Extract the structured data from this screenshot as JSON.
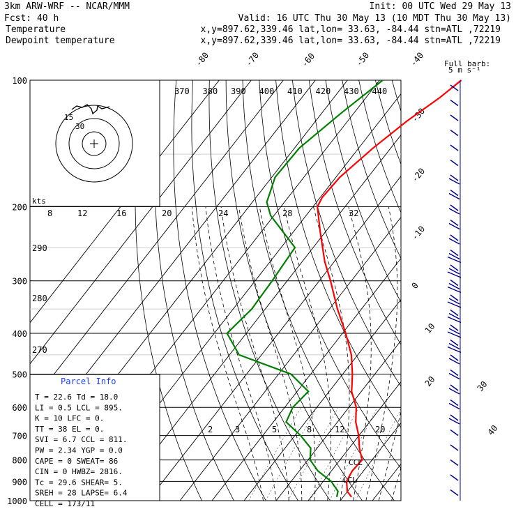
{
  "header": {
    "model": "3km ARW-WRF -- NCAR/MMM",
    "init": "Init: 00 UTC Wed 29 May 13",
    "fcst": "Fcst:   40 h",
    "valid": "Valid: 16 UTC Thu 30 May 13 (10 MDT Thu 30 May 13)",
    "temp_line_label": "Temperature",
    "temp_line_info": "x,y=897.62,339.46   lat,lon= 33.63, -84.44   stn=ATL ,72219",
    "dew_line_label": "Dewpoint temperature",
    "dew_line_info": "x,y=897.62,339.46   lat,lon= 33.63, -84.44   stn=ATL ,72219"
  },
  "colors": {
    "temperature": "#ff0000",
    "dewpoint": "#008000",
    "wind": "#00008b",
    "text_red": "#ff0000",
    "text_green": "#008000",
    "panel_title": "#1e40ff"
  },
  "barb_legend": {
    "title": "Full barb:",
    "unit": "5 m s⁻¹"
  },
  "hodograph": {
    "unit_label": "kts",
    "labels": [
      "15",
      "30"
    ]
  },
  "parcel_info": {
    "title": "Parcel Info",
    "rows": [
      "T  =   22.6  Td =  18.0",
      "LI =    0.5  LCL =  895.",
      "K  =     10  LFC =    0.",
      "TT =     38  EL  =    0.",
      "SVI =   6.7  CCL =  811.",
      "PW =   2.34  YGP =   0.0",
      "CAPE =    0  SWEAT=   86",
      "CIN =     0  HWBZ= 2816.",
      "Tc =   29.6  SHEAR=   5.",
      "SREH =   28  LAPSE=  6.4",
      "CELL = 173/11"
    ]
  },
  "annotations": {
    "lcl": "LCL",
    "ccl": "CCL"
  },
  "chart_data": {
    "type": "line",
    "y_axis": {
      "label": "",
      "scale": "log-pressure",
      "unit": "hPa",
      "ticks": [
        100,
        200,
        300,
        400,
        500,
        600,
        700,
        800,
        900,
        1000
      ],
      "ylim": [
        1000,
        100
      ]
    },
    "isotherm_labels_top": [
      "-80",
      "-70",
      "-60",
      "-50",
      "-40"
    ],
    "isotherm_labels_right": [
      "-30",
      "-20",
      "-10",
      "0",
      "10",
      "20",
      "30",
      "40"
    ],
    "theta_labels": [
      "370",
      "380",
      "390",
      "400",
      "410",
      "420",
      "430",
      "440"
    ],
    "mixing_ratio_labels_upper": [
      "8",
      "12",
      "16",
      "20",
      "24",
      "28",
      "32"
    ],
    "mixing_ratio_labels_lower": [
      "2",
      "3",
      "5",
      "8",
      "12",
      "20"
    ],
    "dry_adiabat_labels": [
      "290",
      "280",
      "270"
    ],
    "series": [
      {
        "name": "Temperature",
        "points": [
          [
            100,
            -44.5
          ],
          [
            110,
            -47.0
          ],
          [
            125,
            -51.5
          ],
          [
            145,
            -55.5
          ],
          [
            170,
            -58.8
          ],
          [
            190,
            -59.4
          ],
          [
            200,
            -58.6
          ],
          [
            230,
            -51.5
          ],
          [
            270,
            -43.0
          ],
          [
            300,
            -36.5
          ],
          [
            350,
            -27.5
          ],
          [
            400,
            -19.0
          ],
          [
            450,
            -12.0
          ],
          [
            500,
            -7.0
          ],
          [
            550,
            -3.0
          ],
          [
            600,
            2.3
          ],
          [
            650,
            5.7
          ],
          [
            700,
            9.9
          ],
          [
            750,
            13.2
          ],
          [
            800,
            16.9
          ],
          [
            850,
            16.5
          ],
          [
            900,
            17.3
          ],
          [
            950,
            19.9
          ],
          [
            980,
            22.6
          ]
        ]
      },
      {
        "name": "Dewpoint temperature",
        "points": [
          [
            100,
            -69.0
          ],
          [
            120,
            -74.0
          ],
          [
            145,
            -78.5
          ],
          [
            170,
            -79.0
          ],
          [
            195,
            -75.5
          ],
          [
            210,
            -71.0
          ],
          [
            250,
            -55.7
          ],
          [
            300,
            -54.7
          ],
          [
            350,
            -54.2
          ],
          [
            400,
            -56.0
          ],
          [
            450,
            -47.0
          ],
          [
            500,
            -26.2
          ],
          [
            550,
            -16.5
          ],
          [
            600,
            -17.5
          ],
          [
            650,
            -16.0
          ],
          [
            700,
            -8.2
          ],
          [
            750,
            -2.0
          ],
          [
            800,
            0.7
          ],
          [
            850,
            5.8
          ],
          [
            900,
            12.5
          ],
          [
            950,
            17.0
          ],
          [
            980,
            18.0
          ]
        ]
      }
    ],
    "wind_barbs_speed_kt": [
      3,
      4,
      5,
      5,
      5,
      6,
      8,
      9,
      10,
      11,
      12,
      13,
      13,
      14,
      14,
      14,
      14,
      13,
      12,
      11,
      10,
      9,
      8,
      7,
      6,
      5,
      4,
      3
    ]
  }
}
